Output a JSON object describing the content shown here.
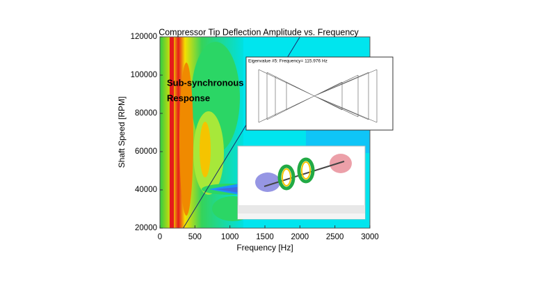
{
  "chart_data": {
    "type": "contour",
    "title": "Compressor Tip Deflection Amplitude vs. Frequency",
    "x_label": "Frequency [Hz]",
    "y_label": "Shaft Speed [RPM]",
    "xlim": [
      0,
      3000
    ],
    "xticks": [
      0,
      500,
      1000,
      1500,
      2000,
      2500,
      3000
    ],
    "ylim": [
      20000,
      120000
    ],
    "yticks": [
      20000,
      40000,
      60000,
      80000,
      100000,
      120000
    ],
    "series": [
      {
        "color": "#1a2a6c",
        "x": [
          333,
          2000
        ],
        "values": [
          20000,
          120000
        ]
      }
    ],
    "annotations": [
      "Sub-synchronous",
      "Response"
    ],
    "inset_title": "Eigenvalue #5: Frequency= 115.976 Hz"
  }
}
